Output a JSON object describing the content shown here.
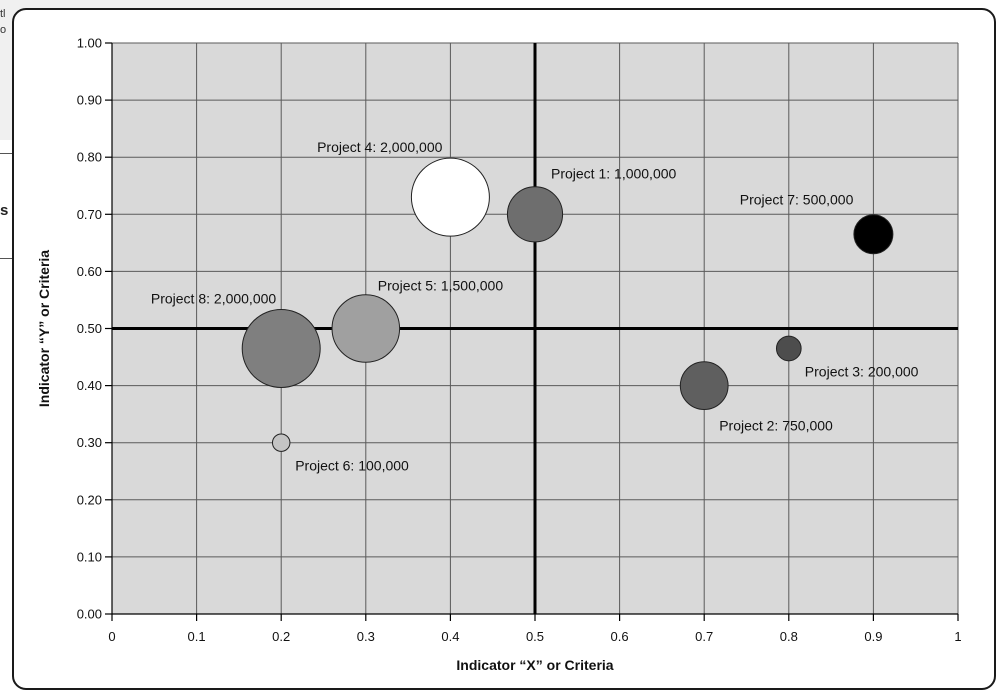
{
  "page_fragment": {
    "left_text_lines": [
      "tl",
      "o"
    ],
    "side_letter": "s"
  },
  "chart_data": {
    "type": "scatter",
    "subtype": "bubble",
    "title": "",
    "xlabel": "Indicator “X” or Criteria",
    "ylabel": "Indicator “Y” or Criteria",
    "xlim": [
      0,
      1
    ],
    "ylim": [
      0,
      1
    ],
    "x_ticks": [
      "0",
      "0.1",
      "0.2",
      "0.3",
      "0.4",
      "0.5",
      "0.6",
      "0.7",
      "0.8",
      "0.9",
      "1"
    ],
    "y_ticks": [
      "0.00",
      "0.10",
      "0.20",
      "0.30",
      "0.40",
      "0.50",
      "0.60",
      "0.70",
      "0.80",
      "0.90",
      "1.00"
    ],
    "grid": true,
    "quadrant_lines": {
      "x": 0.5,
      "y": 0.5
    },
    "plot_background": "#d9d9d9",
    "points": [
      {
        "label": "Project 1:",
        "value": "1,000,000",
        "x": 0.5,
        "y": 0.7,
        "size": 1000000,
        "color": "#6e6e6e"
      },
      {
        "label": "Project 2:",
        "value": "750,000",
        "x": 0.7,
        "y": 0.4,
        "size": 750000,
        "color": "#5f5f5f"
      },
      {
        "label": "Project 3:",
        "value": "200,000",
        "x": 0.8,
        "y": 0.465,
        "size": 200000,
        "color": "#4d4d4d"
      },
      {
        "label": "Project 4:",
        "value": "2,000,000",
        "x": 0.4,
        "y": 0.73,
        "size": 2000000,
        "color": "#ffffff"
      },
      {
        "label": "Project 5:",
        "value": "1,500,000",
        "x": 0.3,
        "y": 0.5,
        "size": 1500000,
        "color": "#a0a0a0"
      },
      {
        "label": "Project 6:",
        "value": "100,000",
        "x": 0.2,
        "y": 0.3,
        "size": 100000,
        "color": "#c4c4c4"
      },
      {
        "label": "Project 7:",
        "value": "500,000",
        "x": 0.9,
        "y": 0.665,
        "size": 500000,
        "color": "#000000"
      },
      {
        "label": "Project 8:",
        "value": "2,000,000",
        "x": 0.2,
        "y": 0.465,
        "size": 2000000,
        "color": "#7f7f7f"
      }
    ]
  }
}
